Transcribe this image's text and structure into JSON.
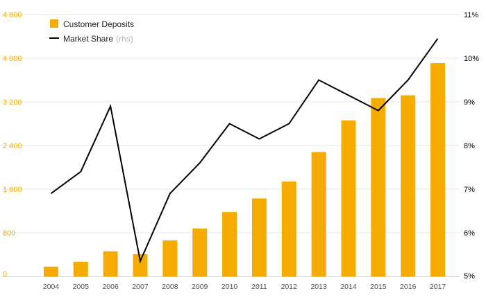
{
  "chart_data": {
    "type": "bar",
    "categories": [
      "2004",
      "2005",
      "2006",
      "2007",
      "2008",
      "2009",
      "2010",
      "2011",
      "2012",
      "2013",
      "2014",
      "2015",
      "2016",
      "2017"
    ],
    "series": [
      {
        "name": "Customer Deposits",
        "type": "bar",
        "axis": "left",
        "color": "#f5ab00",
        "values": [
          180,
          270,
          460,
          410,
          660,
          880,
          1180,
          1430,
          1740,
          2280,
          2860,
          3270,
          3320,
          3910
        ]
      },
      {
        "name": "Market Share",
        "name_suffix": "(rhs)",
        "type": "line",
        "axis": "right",
        "color": "#000000",
        "values": [
          6.9,
          7.4,
          8.9,
          5.35,
          6.9,
          7.6,
          8.5,
          8.15,
          8.5,
          9.5,
          9.15,
          8.8,
          9.5,
          10.45
        ]
      }
    ],
    "y_left": {
      "ylim": [
        0,
        4800
      ],
      "ticks": [
        "0",
        "800",
        "1 600",
        "2 400",
        "3 200",
        "4 000",
        "4 800"
      ],
      "color": "#f5ab00"
    },
    "y_right": {
      "ylim": [
        5,
        11
      ],
      "ticks": [
        "5%",
        "6%",
        "7%",
        "8%",
        "9%",
        "10%",
        "11%"
      ],
      "color": "#000000"
    },
    "title": "",
    "xlabel": "",
    "ylabel": "",
    "grid": true,
    "legend_position": "top-left"
  }
}
